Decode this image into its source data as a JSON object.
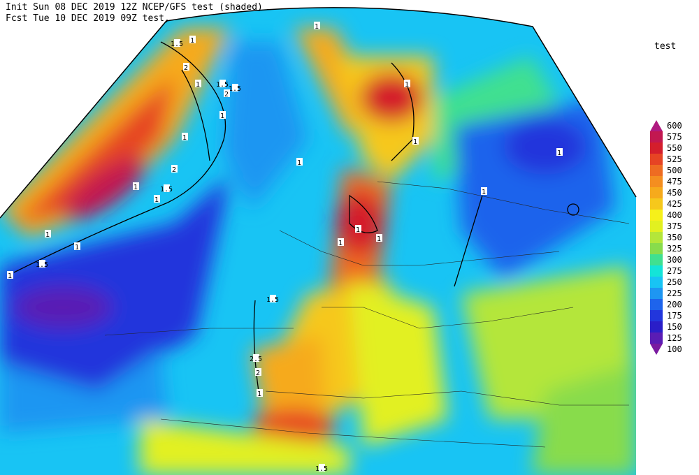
{
  "header": {
    "line1": "Init  Sun 08 DEC 2019 12Z  NCEP/GFS test (shaded)",
    "line2": "Fcst Tue 10 DEC 2019 09Z  test,"
  },
  "legend": {
    "title": "test",
    "levels": [
      {
        "value": 100,
        "color": "#7a1aa0"
      },
      {
        "value": 125,
        "color": "#5a1cb4"
      },
      {
        "value": 150,
        "color": "#2a1ec8"
      },
      {
        "value": 175,
        "color": "#2236dc"
      },
      {
        "value": 200,
        "color": "#1e64ec"
      },
      {
        "value": 225,
        "color": "#1e96f2"
      },
      {
        "value": 250,
        "color": "#18c4f4"
      },
      {
        "value": 275,
        "color": "#14e4d8"
      },
      {
        "value": 300,
        "color": "#40e090"
      },
      {
        "value": 325,
        "color": "#88dc4c"
      },
      {
        "value": 350,
        "color": "#b4e63a"
      },
      {
        "value": 375,
        "color": "#e2f020"
      },
      {
        "value": 400,
        "color": "#f6f01a"
      },
      {
        "value": 425,
        "color": "#f6c81c"
      },
      {
        "value": 450,
        "color": "#f6aa1c"
      },
      {
        "value": 475,
        "color": "#f48e20"
      },
      {
        "value": 500,
        "color": "#ee6c22"
      },
      {
        "value": 525,
        "color": "#e64424"
      },
      {
        "value": 550,
        "color": "#d41e2c"
      },
      {
        "value": 575,
        "color": "#c21850"
      },
      {
        "value": 600,
        "color": "#b01a80"
      }
    ]
  },
  "contour_labels": [
    "1.5",
    "1",
    "2",
    "1",
    "1.5",
    "1.5",
    "2",
    "1",
    "1",
    "2",
    "1",
    "1.5",
    "1",
    "1",
    "1",
    "1",
    "1.5",
    "1",
    "1",
    "1",
    "1",
    "1",
    "1",
    "1.5",
    "2.5",
    "2",
    "1",
    "1",
    "1",
    "1",
    "1.5"
  ]
}
